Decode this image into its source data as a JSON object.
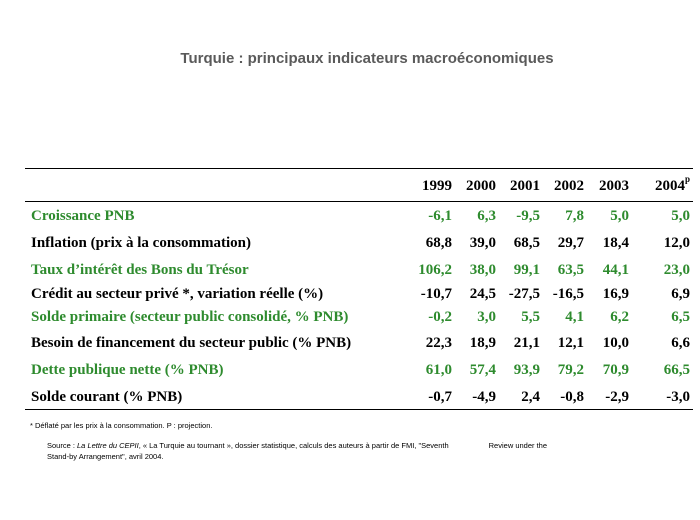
{
  "title": "Turquie : principaux indicateurs macroéconomiques",
  "years": [
    {
      "label": "1999",
      "sup": ""
    },
    {
      "label": "2000",
      "sup": ""
    },
    {
      "label": "2001",
      "sup": ""
    },
    {
      "label": "2002",
      "sup": ""
    },
    {
      "label": "2003",
      "sup": ""
    },
    {
      "label": "2004",
      "sup": "p"
    }
  ],
  "rows": [
    {
      "label": "Croissance PNB",
      "color": "#2e8b2e",
      "values": [
        "-6,1",
        "6,3",
        "-9,5",
        "7,8",
        "5,0",
        "5,0"
      ]
    },
    {
      "label": "Inflation (prix à la consommation)",
      "color": "#000000",
      "values": [
        "68,8",
        "39,0",
        "68,5",
        "29,7",
        "18,4",
        "12,0"
      ]
    },
    {
      "label": "Taux d’intérêt des Bons du Trésor",
      "color": "#2e8b2e",
      "values": [
        "106,2",
        "38,0",
        "99,1",
        "63,5",
        "44,1",
        "23,0"
      ]
    },
    {
      "label": "Crédit au secteur privé *, variation réelle (%)",
      "color": "#000000",
      "values": [
        "-10,7",
        "24,5",
        "-27,5",
        "-16,5",
        "16,9",
        "6,9"
      ]
    },
    {
      "label": "Solde primaire (secteur public consolidé, % PNB)",
      "color": "#2e8b2e",
      "values": [
        "-0,2",
        "3,0",
        "5,5",
        "4,1",
        "6,2",
        "6,5"
      ]
    },
    {
      "label": "Besoin de financement du secteur public (% PNB)",
      "color": "#000000",
      "values": [
        "22,3",
        "18,9",
        "21,1",
        "12,1",
        "10,0",
        "6,6"
      ]
    },
    {
      "label": "Dette publique nette (% PNB)",
      "color": "#2e8b2e",
      "values": [
        "61,0",
        "57,4",
        "93,9",
        "79,2",
        "70,9",
        "66,5"
      ]
    },
    {
      "label": "Solde courant (% PNB)",
      "color": "#000000",
      "values": [
        "-0,7",
        "-4,9",
        "2,4",
        "-0,8",
        "-2,9",
        "-3,0"
      ]
    }
  ],
  "footnote": "*  Déflaté par les prix à la consommation.  P :  projection.",
  "source": {
    "prefix": "Source : ",
    "publication": "La Lettre du CEPII",
    "rest_line1": ", « La Turquie au tournant », dossier statistique, calculs des auteurs à partir de FMI, \"Seventh",
    "rest_line1_tail": "Review under the",
    "line2": "Stand-by Arrangement\", avril 2004."
  }
}
